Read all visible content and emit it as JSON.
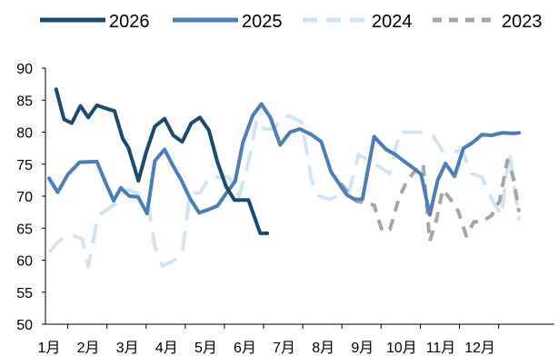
{
  "chart_data": {
    "type": "line",
    "title": "",
    "xlabel": "",
    "ylabel": "",
    "ylim": [
      50,
      90
    ],
    "yticks": [
      50,
      55,
      60,
      65,
      70,
      75,
      80,
      85,
      90
    ],
    "xlim": [
      0,
      12
    ],
    "xticks": [
      {
        "label": "1月",
        "x": 0
      },
      {
        "label": "2月",
        "x": 1
      },
      {
        "label": "3月",
        "x": 2
      },
      {
        "label": "4月",
        "x": 3
      },
      {
        "label": "5月",
        "x": 4
      },
      {
        "label": "6月",
        "x": 5
      },
      {
        "label": "7月",
        "x": 6
      },
      {
        "label": "8月",
        "x": 7
      },
      {
        "label": "9月",
        "x": 8
      },
      {
        "label": "10月",
        "x": 9
      },
      {
        "label": "11月",
        "x": 10
      },
      {
        "label": "12月",
        "x": 11
      }
    ],
    "grid": false,
    "legend_position": "top",
    "series": [
      {
        "name": "2026",
        "color": "#1a4b6e",
        "dash": "solid",
        "x": [
          0.18,
          0.38,
          0.58,
          0.8,
          1.0,
          1.22,
          1.45,
          1.67,
          1.88,
          2.03,
          2.28,
          2.48,
          2.7,
          2.95,
          3.17,
          3.4,
          3.63,
          3.85,
          4.08,
          4.3,
          4.52,
          4.73,
          4.92,
          5.09,
          5.39,
          5.57
        ],
        "y": [
          86.7,
          82.0,
          81.4,
          84.1,
          82.3,
          84.2,
          83.7,
          83.3,
          79.0,
          77.5,
          72.4,
          76.9,
          80.9,
          82.1,
          79.5,
          78.5,
          81.4,
          82.3,
          80.3,
          75.3,
          71.5,
          69.4,
          69.4,
          69.4,
          64.2,
          64.2
        ]
      },
      {
        "name": "2025",
        "color": "#4a7ebb",
        "dash": "solid",
        "x": [
          0.0,
          0.22,
          0.48,
          0.78,
          1.22,
          1.45,
          1.65,
          1.83,
          2.05,
          2.27,
          2.5,
          2.7,
          2.95,
          3.15,
          3.37,
          3.6,
          3.83,
          4.07,
          4.3,
          4.52,
          4.75,
          4.95,
          5.2,
          5.42,
          5.65,
          5.9,
          6.15,
          6.4,
          6.7,
          6.95,
          7.2,
          7.6,
          7.8,
          8.0,
          8.3,
          8.6,
          8.82,
          9.05,
          9.3,
          9.5,
          9.72,
          9.92,
          10.12,
          10.35,
          10.58,
          10.8,
          11.05,
          11.3,
          11.58,
          11.85,
          12.0
        ],
        "y": [
          72.8,
          70.6,
          73.4,
          75.3,
          75.4,
          72.0,
          69.3,
          71.3,
          70.0,
          69.9,
          67.3,
          75.5,
          77.3,
          74.9,
          72.6,
          69.6,
          67.4,
          67.9,
          68.5,
          70.4,
          72.3,
          78.4,
          82.6,
          84.4,
          82.3,
          78.0,
          80.0,
          80.5,
          79.6,
          78.5,
          73.8,
          70.2,
          69.5,
          69.5,
          79.3,
          77.3,
          76.6,
          75.5,
          74.4,
          73.4,
          67.1,
          72.5,
          75.1,
          73.1,
          77.5,
          78.3,
          79.6,
          79.5,
          79.9,
          79.8,
          79.9
        ]
      },
      {
        "name": "2024",
        "color": "#d2e3f2",
        "dash": "long",
        "x": [
          0.0,
          0.25,
          0.55,
          0.85,
          1.0,
          1.25,
          1.5,
          1.75,
          2.0,
          2.25,
          2.5,
          2.7,
          2.9,
          3.2,
          3.4,
          3.6,
          3.85,
          4.1,
          4.35,
          4.6,
          4.85,
          5.1,
          5.3,
          5.5,
          5.75,
          5.95,
          6.15,
          6.45,
          6.7,
          6.9,
          7.15,
          7.4,
          7.65,
          7.9,
          8.2,
          8.45,
          8.7,
          8.95,
          9.25,
          9.5,
          9.8,
          10.05,
          10.3,
          10.55,
          10.8,
          11.05,
          11.3,
          11.55,
          11.75,
          12.0
        ],
        "y": [
          61.2,
          63.0,
          64.0,
          63.3,
          59.0,
          67.0,
          68.0,
          69.0,
          71.0,
          70.5,
          69.5,
          62.2,
          59.1,
          60.0,
          61.0,
          70.5,
          70.5,
          73.0,
          73.0,
          73.0,
          70.0,
          75.5,
          82.0,
          80.5,
          80.5,
          82.5,
          82.5,
          81.5,
          72.5,
          70.0,
          69.5,
          70.0,
          70.5,
          76.5,
          75.5,
          74.5,
          73.5,
          80.0,
          80.0,
          80.0,
          79.5,
          77.0,
          77.0,
          77.0,
          73.5,
          73.0,
          69.5,
          67.0,
          77.0,
          66.2
        ]
      },
      {
        "name": "2023",
        "color": "#a6a6a6",
        "dash": "medium",
        "x": [
          7.45,
          7.65,
          7.85,
          8.05,
          8.3,
          8.5,
          8.7,
          8.95,
          9.15,
          9.35,
          9.55,
          9.72,
          9.88,
          10.05,
          10.25,
          10.45,
          10.65,
          10.85,
          11.05,
          11.3,
          11.5,
          11.7,
          11.85,
          12.0
        ],
        "y": [
          72.0,
          70.5,
          69.2,
          69.0,
          68.6,
          64.6,
          64.8,
          70.0,
          72.5,
          74.0,
          75.0,
          63.0,
          66.0,
          71.0,
          69.5,
          67.6,
          63.8,
          66.0,
          66.0,
          67.0,
          69.2,
          75.6,
          73.0,
          67.5
        ]
      }
    ]
  }
}
